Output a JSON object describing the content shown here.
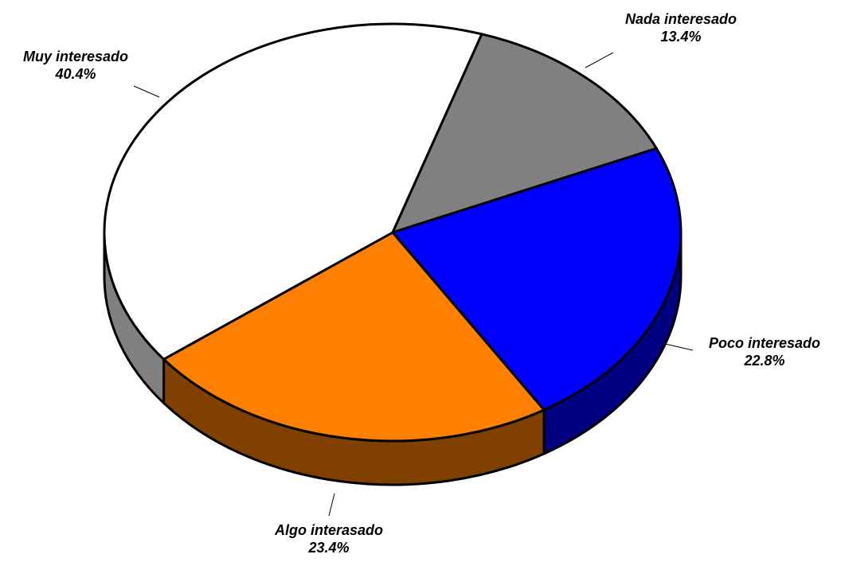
{
  "chart_data": {
    "type": "pie",
    "categories": [
      "Nada interesado",
      "Poco interesado",
      "Algo interasado",
      "Muy interesado"
    ],
    "values": [
      13.4,
      22.8,
      23.4,
      40.4
    ],
    "value_labels": [
      "13.4%",
      "22.8%",
      "23.4%",
      "40.4%"
    ],
    "colors": [
      "#808080",
      "#0000ff",
      "#ff8000",
      "#ffffff"
    ],
    "side_colors": [
      "#606060",
      "#000080",
      "#804000",
      "#808080"
    ]
  }
}
